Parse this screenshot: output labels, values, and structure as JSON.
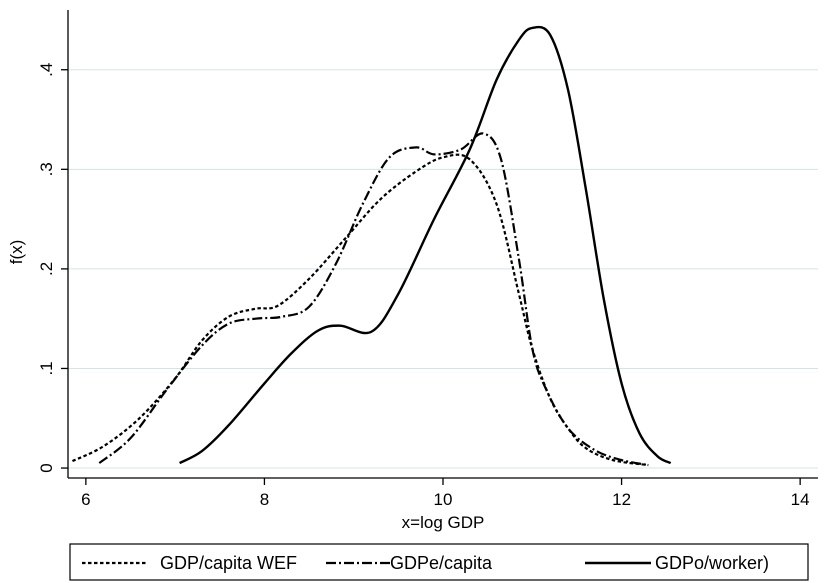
{
  "chart_data": {
    "type": "line",
    "title": "",
    "xlabel": "x=log GDP",
    "ylabel": "f(x)",
    "xlim": [
      5.8,
      14.2
    ],
    "ylim": [
      -0.01,
      0.46
    ],
    "x_ticks": [
      6,
      8,
      10,
      12,
      14
    ],
    "x_tick_labels": [
      "6",
      "8",
      "10",
      "12",
      "14"
    ],
    "y_ticks": [
      0,
      0.1,
      0.2,
      0.3,
      0.4
    ],
    "y_tick_labels": [
      "0",
      ".1",
      ".2",
      ".3",
      ".4"
    ],
    "grid": "horizontal",
    "legend": {
      "placement": "bottom",
      "frame": true
    },
    "series": [
      {
        "name": "GDP/capita WEF",
        "style": "dotted",
        "x": [
          5.85,
          6.2,
          6.6,
          7.0,
          7.3,
          7.6,
          7.9,
          8.15,
          8.5,
          8.9,
          9.3,
          9.7,
          10.0,
          10.3,
          10.6,
          10.85,
          11.0,
          11.2,
          11.4,
          11.6,
          11.9,
          12.3
        ],
        "y": [
          0.007,
          0.022,
          0.05,
          0.09,
          0.128,
          0.152,
          0.16,
          0.163,
          0.19,
          0.23,
          0.27,
          0.298,
          0.312,
          0.31,
          0.265,
          0.175,
          0.12,
          0.07,
          0.04,
          0.02,
          0.008,
          0.003
        ]
      },
      {
        "name": "GDPe/capita",
        "style": "dashdot",
        "x": [
          6.15,
          6.5,
          6.9,
          7.3,
          7.6,
          7.9,
          8.2,
          8.5,
          8.8,
          9.1,
          9.4,
          9.7,
          9.9,
          10.2,
          10.45,
          10.65,
          10.85,
          11.0,
          11.15,
          11.4,
          11.7,
          12.0,
          12.3
        ],
        "y": [
          0.005,
          0.03,
          0.078,
          0.123,
          0.145,
          0.15,
          0.152,
          0.162,
          0.205,
          0.265,
          0.312,
          0.322,
          0.315,
          0.32,
          0.336,
          0.31,
          0.21,
          0.12,
          0.08,
          0.04,
          0.018,
          0.008,
          0.003
        ]
      },
      {
        "name": "GDPo/worker)",
        "style": "solid",
        "x": [
          7.05,
          7.3,
          7.6,
          8.0,
          8.3,
          8.6,
          8.85,
          9.2,
          9.5,
          9.9,
          10.3,
          10.6,
          10.85,
          11.0,
          11.2,
          11.4,
          11.6,
          11.8,
          12.0,
          12.2,
          12.4,
          12.55
        ],
        "y": [
          0.005,
          0.017,
          0.043,
          0.085,
          0.115,
          0.138,
          0.143,
          0.137,
          0.175,
          0.25,
          0.32,
          0.39,
          0.43,
          0.442,
          0.435,
          0.38,
          0.28,
          0.17,
          0.085,
          0.035,
          0.012,
          0.005
        ]
      }
    ]
  }
}
